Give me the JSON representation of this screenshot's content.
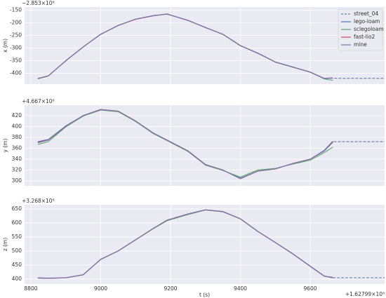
{
  "chart_data": [
    {
      "type": "line",
      "y_label": "x (m)",
      "offset_label": "−2.853×10⁶",
      "legend": "upper right",
      "grid": true,
      "x": [
        8820,
        8850,
        8900,
        8950,
        9000,
        9050,
        9100,
        9150,
        9190,
        9250,
        9300,
        9350,
        9400,
        9450,
        9500,
        9550,
        9600,
        9640,
        9665,
        9813
      ],
      "ylim": [
        -443,
        -137
      ],
      "yticks": [
        -150,
        -200,
        -250,
        -300,
        -350,
        -400
      ],
      "series": [
        {
          "name": "street_04",
          "color": "#6b7fa8",
          "linestyle": "dashed",
          "values": [
            -421,
            -410,
            -350,
            -295,
            -245,
            -210,
            -185,
            -172,
            -165,
            -190,
            -218,
            -245,
            -290,
            -320,
            -355,
            -375,
            -395,
            -420,
            -420,
            -420
          ]
        },
        {
          "name": "lego-loam",
          "color": "#4c72b0",
          "values": [
            -421,
            -410,
            -351,
            -295,
            -246,
            -210,
            -185,
            -171,
            -165,
            -190,
            -219,
            -245,
            -290,
            -321,
            -355,
            -375,
            -396,
            -421,
            -419,
            null
          ]
        },
        {
          "name": "sclegoloam",
          "color": "#55a868",
          "values": [
            -422,
            -411,
            -350,
            -296,
            -245,
            -211,
            -185,
            -172,
            -164,
            -191,
            -218,
            -246,
            -291,
            -320,
            -356,
            -376,
            -395,
            -422,
            -428,
            null
          ]
        },
        {
          "name": "fast-lio2",
          "color": "#c44e52",
          "values": [
            -421,
            -410,
            -350,
            -295,
            -245,
            -210,
            -186,
            -172,
            -165,
            -190,
            -218,
            -245,
            -290,
            -320,
            -355,
            -375,
            -395,
            -420,
            -418,
            null
          ]
        },
        {
          "name": "mine",
          "color": "#8172b2",
          "values": [
            -420,
            -410,
            -350,
            -295,
            -245,
            -210,
            -185,
            -172,
            -165,
            -190,
            -218,
            -245,
            -290,
            -320,
            -355,
            -375,
            -395,
            -420,
            -419,
            null
          ]
        }
      ]
    },
    {
      "type": "line",
      "y_label": "y (m)",
      "offset_label": "+4.667×10⁶",
      "grid": true,
      "x": [
        8820,
        8850,
        8900,
        8950,
        9000,
        9050,
        9100,
        9150,
        9190,
        9250,
        9300,
        9350,
        9400,
        9450,
        9500,
        9550,
        9600,
        9640,
        9665,
        9813
      ],
      "ylim": [
        291,
        439
      ],
      "yticks": [
        300,
        320,
        340,
        360,
        380,
        400,
        420
      ],
      "series": [
        {
          "color": "#6b7fa8",
          "linestyle": "dashed",
          "values": [
            370,
            375,
            400,
            420,
            431,
            428,
            410,
            388,
            375,
            355,
            330,
            320,
            304,
            318,
            322,
            332,
            340,
            355,
            372,
            372
          ]
        },
        {
          "color": "#4c72b0",
          "values": [
            372,
            376,
            401,
            420,
            431,
            428,
            410,
            388,
            375,
            355,
            330,
            320,
            305,
            318,
            322,
            332,
            340,
            356,
            373,
            null
          ]
        },
        {
          "color": "#55a868",
          "values": [
            367,
            372,
            399,
            419,
            430,
            427,
            409,
            387,
            374,
            354,
            329,
            319,
            307,
            320,
            323,
            331,
            338,
            352,
            362,
            null
          ]
        },
        {
          "color": "#c44e52",
          "values": [
            371,
            375,
            400,
            420,
            431,
            428,
            410,
            388,
            375,
            355,
            330,
            320,
            304,
            318,
            322,
            332,
            340,
            355,
            372,
            null
          ]
        },
        {
          "color": "#8172b2",
          "values": [
            370,
            375,
            400,
            420,
            431,
            428,
            410,
            388,
            375,
            355,
            330,
            320,
            304,
            318,
            322,
            332,
            340,
            355,
            371,
            null
          ]
        }
      ]
    },
    {
      "type": "line",
      "y_label": "z (m)",
      "offset_label": "+3.268×10⁶",
      "grid": true,
      "x_label": "t (s)",
      "x_offset_label": "+1.62799×10⁹",
      "x": [
        8820,
        8850,
        8900,
        8950,
        9000,
        9050,
        9100,
        9150,
        9190,
        9250,
        9300,
        9350,
        9400,
        9450,
        9500,
        9550,
        9600,
        9640,
        9665,
        9813
      ],
      "xlim": [
        8782,
        9813
      ],
      "xticks": [
        8800,
        9000,
        9200,
        9400,
        9600
      ],
      "ylim": [
        382,
        665
      ],
      "yticks": [
        400,
        450,
        500,
        550,
        600,
        650
      ],
      "series": [
        {
          "color": "#6b7fa8",
          "linestyle": "dashed",
          "values": [
            403,
            402,
            404,
            415,
            470,
            500,
            540,
            580,
            610,
            632,
            647,
            640,
            615,
            570,
            530,
            490,
            445,
            410,
            404,
            404
          ]
        },
        {
          "color": "#4c72b0",
          "values": [
            404,
            403,
            404,
            415,
            470,
            500,
            540,
            580,
            610,
            632,
            647,
            641,
            615,
            570,
            530,
            490,
            446,
            411,
            404,
            null
          ]
        },
        {
          "color": "#55a868",
          "values": [
            403,
            402,
            404,
            415,
            469,
            500,
            539,
            579,
            608,
            630,
            646,
            640,
            614,
            569,
            530,
            489,
            445,
            410,
            406,
            null
          ]
        },
        {
          "color": "#c44e52",
          "values": [
            403,
            402,
            404,
            415,
            470,
            500,
            540,
            580,
            610,
            632,
            647,
            640,
            615,
            570,
            530,
            490,
            445,
            410,
            404,
            null
          ]
        },
        {
          "color": "#8172b2",
          "values": [
            403,
            402,
            404,
            415,
            470,
            500,
            540,
            580,
            610,
            632,
            647,
            640,
            615,
            570,
            530,
            490,
            445,
            410,
            405,
            null
          ]
        }
      ]
    }
  ]
}
